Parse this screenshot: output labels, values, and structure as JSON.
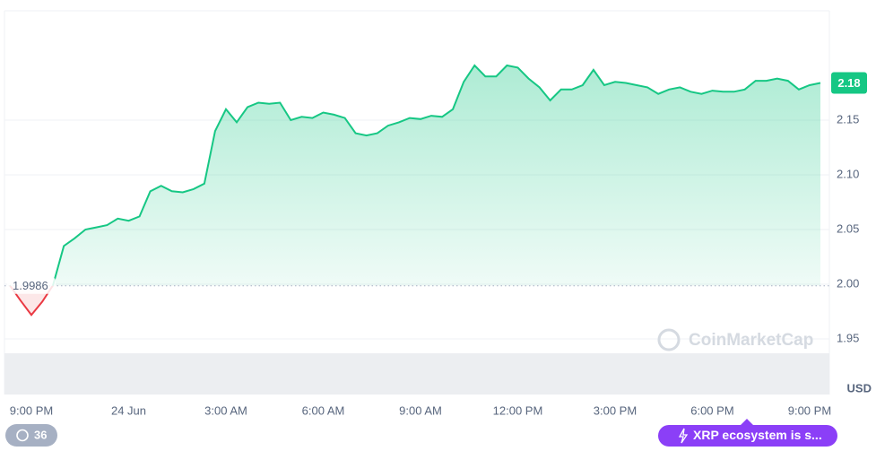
{
  "chart_data": {
    "type": "line",
    "categories": [
      null,
      null,
      "9:00 PM",
      null,
      null,
      null,
      null,
      null,
      null,
      null,
      null,
      "24 Jun",
      null,
      null,
      null,
      null,
      null,
      null,
      null,
      null,
      "3:00 AM",
      null,
      null,
      null,
      null,
      null,
      null,
      null,
      null,
      "6:00 AM",
      null,
      null,
      null,
      null,
      null,
      null,
      null,
      null,
      "9:00 AM",
      null,
      null,
      null,
      null,
      null,
      null,
      null,
      null,
      "12:00 PM",
      null,
      null,
      null,
      null,
      null,
      null,
      null,
      null,
      "3:00 PM",
      null,
      null,
      null,
      null,
      null,
      null,
      null,
      null,
      "6:00 PM",
      null,
      null,
      null,
      null,
      null,
      null,
      null,
      null,
      "9:00 PM",
      null
    ],
    "series": [
      {
        "color": "#16c784",
        "down_color": "#ea3943",
        "values": [
          1.999,
          1.985,
          1.972,
          1.984,
          1.999,
          2.035,
          2.042,
          2.05,
          2.052,
          2.054,
          2.06,
          2.058,
          2.062,
          2.085,
          2.09,
          2.085,
          2.084,
          2.087,
          2.092,
          2.14,
          2.16,
          2.148,
          2.162,
          2.166,
          2.165,
          2.166,
          2.15,
          2.153,
          2.152,
          2.157,
          2.155,
          2.152,
          2.138,
          2.136,
          2.138,
          2.145,
          2.148,
          2.152,
          2.151,
          2.154,
          2.153,
          2.16,
          2.185,
          2.2,
          2.19,
          2.19,
          2.2,
          2.198,
          2.188,
          2.18,
          2.168,
          2.178,
          2.178,
          2.182,
          2.196,
          2.182,
          2.185,
          2.184,
          2.182,
          2.18,
          2.174,
          2.178,
          2.18,
          2.176,
          2.174,
          2.177,
          2.176,
          2.176,
          2.178,
          2.186,
          2.186,
          2.188,
          2.186,
          2.178,
          2.182,
          2.184
        ]
      }
    ],
    "ylim": [
      1.9,
      2.25
    ],
    "yticks": [
      1.95,
      {
        "value": 2,
        "label": "2.00"
      },
      2.05,
      {
        "value": 2.1,
        "label": "2.10"
      },
      2.15
    ],
    "grid": true,
    "baseline": 1.9986,
    "last_price_label": "2.18",
    "currency": "USD",
    "watermark": "CoinMarketCap",
    "history_count": "36",
    "promo": "XRP ecosystem is s..."
  }
}
